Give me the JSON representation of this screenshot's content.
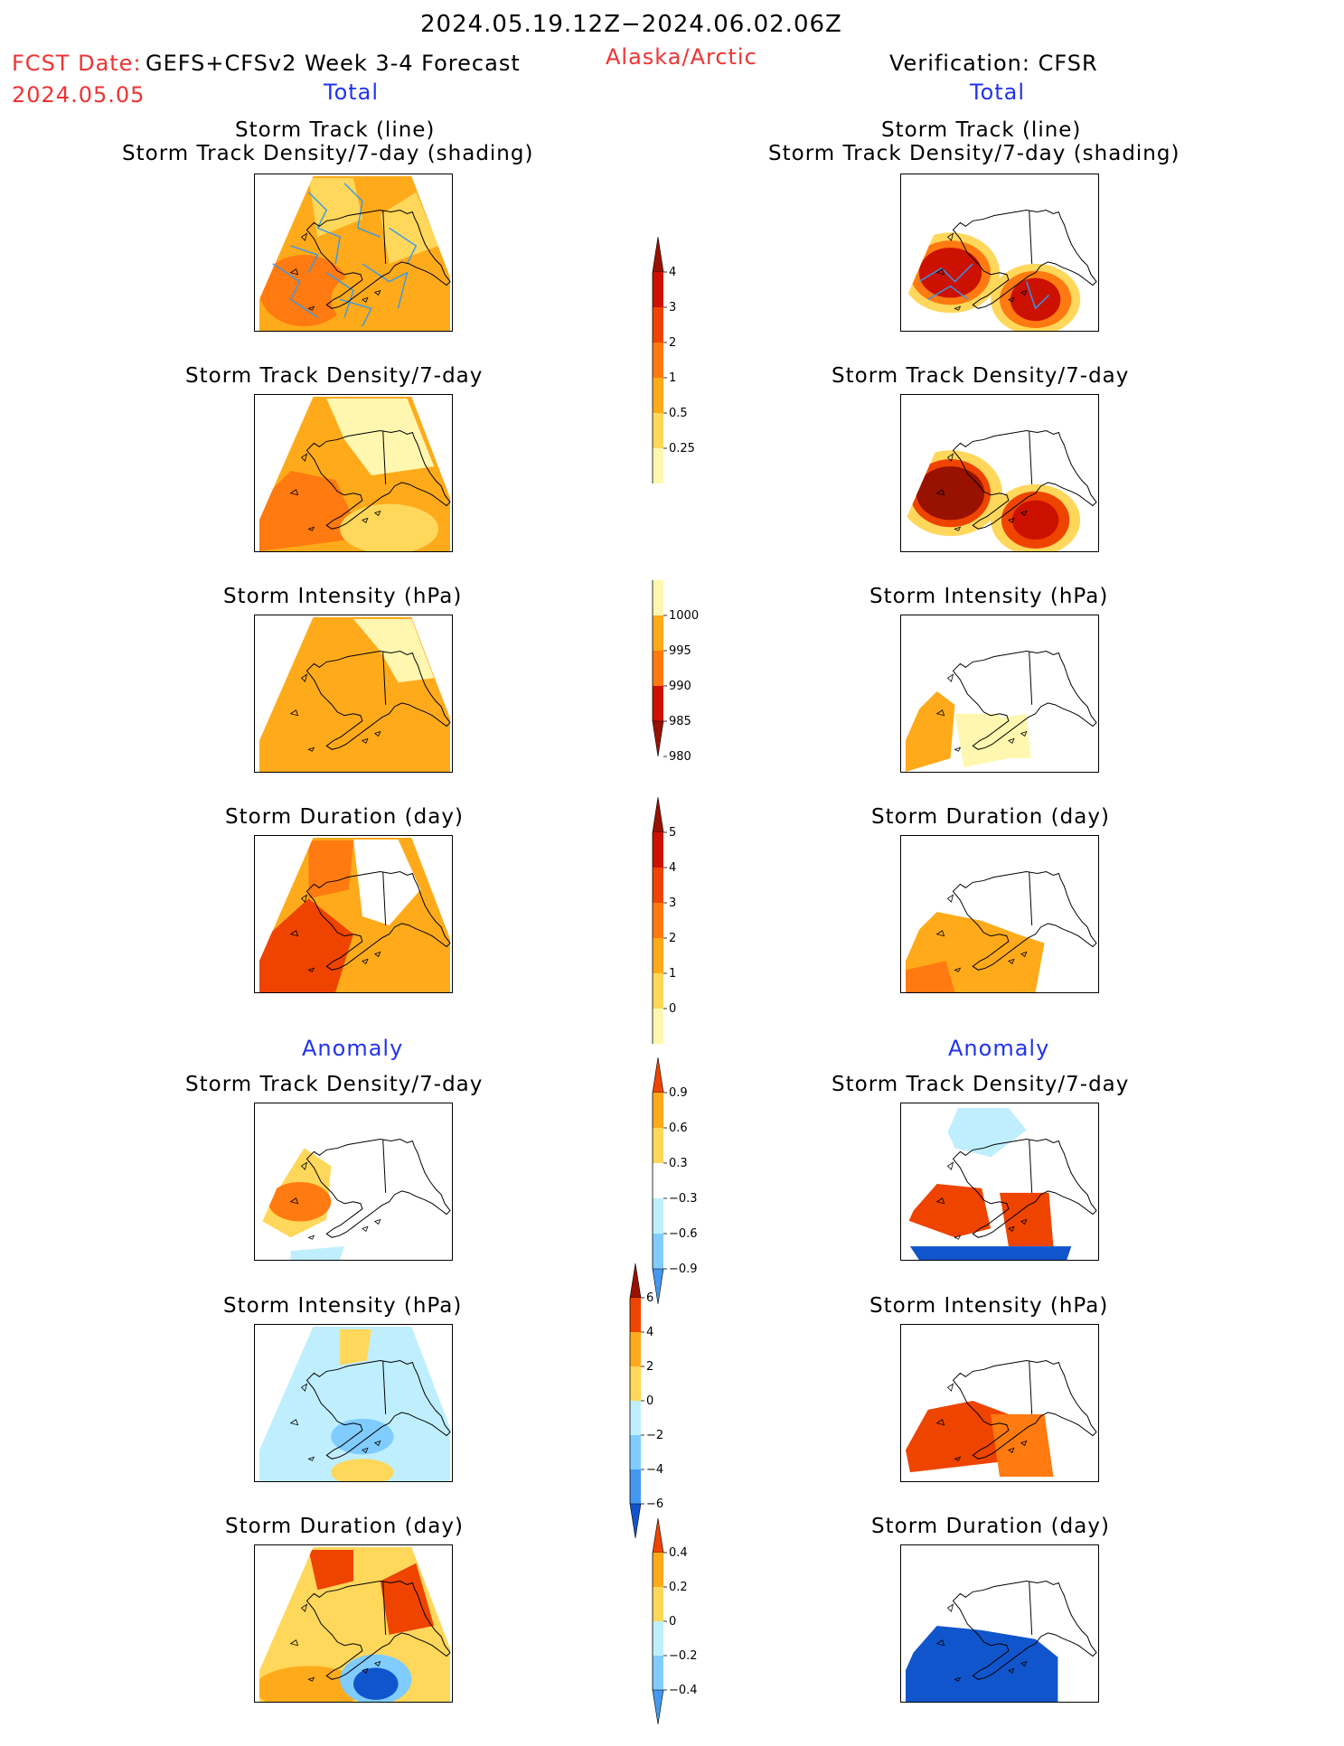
{
  "header": {
    "date_range": "2024.05.19.12Z−2024.06.02.06Z",
    "fcst_label": "FCST Date:",
    "fcst_model": "GEFS+CFSv2 Week 3-4 Forecast",
    "fcst_date": "2024.05.05",
    "region": "Alaska/Arctic",
    "verification": "Verification: CFSR"
  },
  "sections": {
    "total_left": "Total",
    "total_right": "Total",
    "anomaly_left": "Anomaly",
    "anomaly_right": "Anomaly"
  },
  "panel_titles": {
    "track_line": "Storm Track (line)",
    "track_shading": "Storm Track Density/7-day (shading)",
    "density": "Storm Track Density/7-day",
    "intensity": "Storm Intensity (hPa)",
    "duration": "Storm Duration (day)"
  },
  "colorbars": {
    "density": [
      "4",
      "3",
      "2",
      "1",
      "0.5",
      "0.25"
    ],
    "intensity": [
      "1000",
      "995",
      "990",
      "985",
      "980"
    ],
    "duration": [
      "5",
      "4",
      "3",
      "2",
      "1",
      "0"
    ],
    "density_anom": [
      "0.9",
      "0.6",
      "0.3",
      "−0.3",
      "−0.6",
      "−0.9"
    ],
    "intensity_anom": [
      "6",
      "4",
      "2",
      "0",
      "−2",
      "−4",
      "−6"
    ],
    "duration_anom": [
      "0.4",
      "0.2",
      "0",
      "−0.2",
      "−0.4"
    ]
  },
  "colors": {
    "warm": [
      "#fff7b0",
      "#ffd75a",
      "#ffaa1a",
      "#ff7a10",
      "#ee4400",
      "#cc1100",
      "#991100"
    ],
    "cool": [
      "#bfefff",
      "#80ccff",
      "#4499ee",
      "#1155cc"
    ],
    "track_line": "#3399ee"
  }
}
